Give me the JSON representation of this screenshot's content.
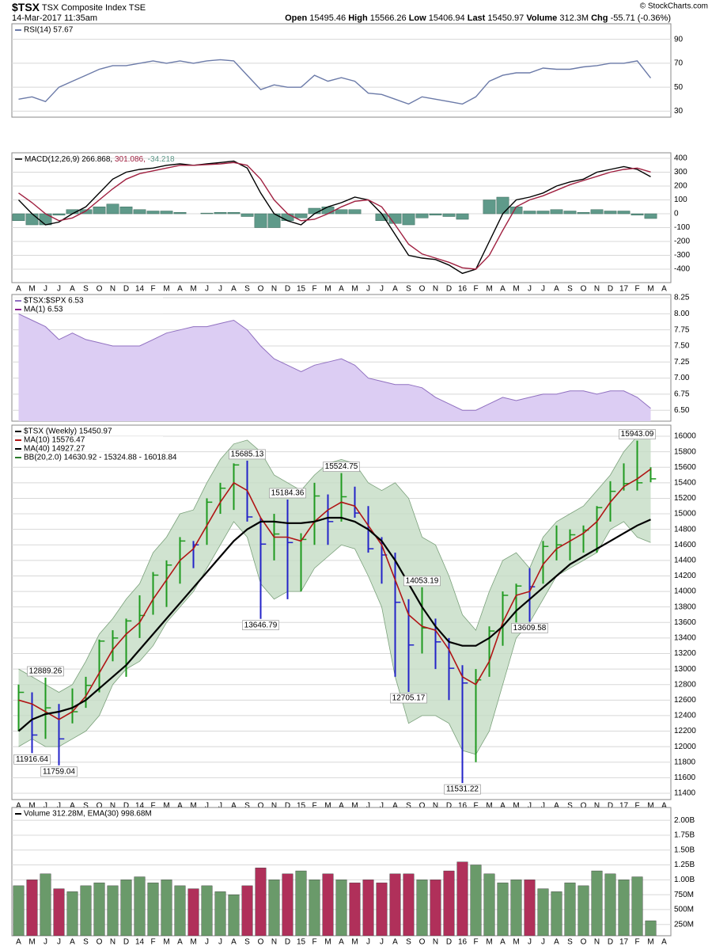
{
  "header": {
    "symbol": "$TSX",
    "name": "TSX Composite Index",
    "exchange": "TSE",
    "date": "14-Mar-2017 11:35am",
    "credit": "© StockCharts.com",
    "quote": [
      {
        "label": "Open",
        "value": 15495.46
      },
      {
        "label": "High",
        "value": 15566.26
      },
      {
        "label": "Low",
        "value": 15406.94
      },
      {
        "label": "Last",
        "value": 15450.97
      },
      {
        "label": "Volume",
        "value": "312.3M"
      },
      {
        "label": "Chg",
        "value": "-55.71 (-0.36%)"
      }
    ]
  },
  "chart_data": [
    {
      "type": "line",
      "ylim": [
        25,
        103
      ],
      "yticks": [
        30,
        50,
        70,
        90
      ],
      "grid": true,
      "series": [
        {
          "name": "RSI(14) 57.67",
          "color": "#6b7aa8",
          "values": [
            40,
            42,
            38,
            50,
            55,
            60,
            65,
            68,
            68,
            70,
            72,
            70,
            72,
            70,
            72,
            73,
            72,
            60,
            48,
            52,
            50,
            50,
            60,
            55,
            58,
            55,
            45,
            44,
            40,
            36,
            42,
            40,
            38,
            36,
            42,
            55,
            60,
            62,
            62,
            66,
            65,
            65,
            67,
            68,
            70,
            70,
            72,
            57.67,
            null
          ]
        }
      ]
    },
    {
      "type": "line",
      "legend": "inline",
      "ylim": [
        -497,
        440
      ],
      "yticks": [
        -400,
        -300,
        -200,
        -100,
        0,
        100,
        200,
        300,
        400
      ],
      "grid": true,
      "categories": [
        "A",
        "M",
        "J",
        "J",
        "A",
        "S",
        "O",
        "N",
        "D",
        "14",
        "F",
        "M",
        "A",
        "M",
        "J",
        "J",
        "A",
        "S",
        "O",
        "N",
        "D",
        "15",
        "F",
        "M",
        "A",
        "M",
        "J",
        "J",
        "A",
        "S",
        "O",
        "N",
        "D",
        "16",
        "F",
        "M",
        "A",
        "M",
        "J",
        "J",
        "A",
        "S",
        "O",
        "N",
        "D",
        "17",
        "F",
        "M",
        "A"
      ],
      "series": [
        {
          "name": "-34.218",
          "color": "#5f9a8a",
          "kind": "bar",
          "values": [
            -50,
            -80,
            -80,
            -10,
            30,
            30,
            50,
            70,
            50,
            30,
            20,
            20,
            10,
            0,
            5,
            10,
            10,
            -20,
            -100,
            -100,
            -50,
            -30,
            40,
            50,
            30,
            30,
            0,
            -50,
            -70,
            -80,
            -30,
            -10,
            -20,
            -40,
            0,
            100,
            120,
            50,
            20,
            20,
            30,
            20,
            10,
            30,
            20,
            20,
            -10,
            -34.218,
            null
          ]
        },
        {
          "name": "MACD(12,26,9) 266.868,",
          "color": "#000000",
          "values": [
            100,
            0,
            -80,
            -60,
            0,
            50,
            150,
            250,
            300,
            320,
            330,
            350,
            360,
            350,
            360,
            370,
            380,
            330,
            150,
            0,
            -50,
            -80,
            0,
            50,
            80,
            120,
            100,
            0,
            -150,
            -300,
            -320,
            -330,
            -370,
            -430,
            -400,
            -200,
            0,
            100,
            120,
            150,
            200,
            230,
            250,
            300,
            320,
            340,
            320,
            266.868,
            null
          ]
        },
        {
          "name": "301.086,",
          "color": "#a02040",
          "values": [
            150,
            80,
            0,
            -50,
            -30,
            20,
            100,
            180,
            250,
            290,
            310,
            330,
            350,
            350,
            355,
            360,
            370,
            350,
            250,
            100,
            0,
            -50,
            -40,
            0,
            50,
            90,
            100,
            50,
            -80,
            -220,
            -290,
            -320,
            -350,
            -390,
            -400,
            -300,
            -120,
            50,
            100,
            130,
            170,
            210,
            240,
            270,
            300,
            320,
            330,
            301.086,
            null
          ]
        }
      ]
    },
    {
      "type": "area",
      "ylim": [
        6.33,
        8.3
      ],
      "grid": true,
      "overlay_name": "MA(1) 6.53",
      "yticks": [
        {
          "value": 6.5,
          "label": "6.50"
        },
        6.75,
        {
          "value": 7,
          "label": "7.00"
        },
        7.25,
        {
          "value": 7.5,
          "label": "7.50"
        },
        7.75,
        {
          "value": 8,
          "label": "8.00"
        },
        8.25
      ],
      "series": [
        {
          "name": "$TSX:$SPX 6.53",
          "color": "#9070c0",
          "fill": "#dccdf3",
          "values": [
            8.0,
            7.9,
            7.8,
            7.6,
            7.7,
            7.6,
            7.55,
            7.5,
            7.5,
            7.5,
            7.6,
            7.7,
            7.75,
            7.8,
            7.8,
            7.85,
            7.9,
            7.75,
            7.5,
            7.3,
            7.2,
            7.1,
            7.2,
            7.25,
            7.3,
            7.2,
            7.0,
            6.95,
            6.9,
            6.9,
            6.85,
            6.7,
            6.6,
            6.5,
            6.5,
            6.6,
            6.7,
            6.65,
            6.7,
            6.75,
            6.75,
            6.8,
            6.8,
            6.75,
            6.8,
            6.8,
            6.7,
            6.53,
            null
          ]
        }
      ]
    },
    {
      "type": "ohlc",
      "ylim": [
        11318,
        16143
      ],
      "grid": true,
      "up_color": "#1f9a1f",
      "down_color": "#2323c8",
      "yticks": [
        11400,
        11600,
        11800,
        12000,
        12200,
        12400,
        12600,
        12800,
        13000,
        13200,
        13400,
        13600,
        13800,
        14000,
        14200,
        14400,
        14600,
        14800,
        15000,
        15200,
        15400,
        15600,
        15800,
        16000
      ],
      "categories": [
        "A",
        "M",
        "J",
        "J",
        "A",
        "S",
        "O",
        "N",
        "D",
        "14",
        "F",
        "M",
        "A",
        "M",
        "J",
        "J",
        "A",
        "S",
        "O",
        "N",
        "D",
        "15",
        "F",
        "M",
        "A",
        "M",
        "J",
        "J",
        "A",
        "S",
        "O",
        "N",
        "D",
        "16",
        "F",
        "M",
        "A",
        "M",
        "J",
        "J",
        "A",
        "S",
        "O",
        "N",
        "D",
        "17",
        "F",
        "M",
        "A"
      ],
      "series": [
        {
          "name": "$TSX (Weekly) 15450.97",
          "color": "#000000",
          "values": [
            12700,
            12150,
            12500,
            12100,
            12450,
            12790,
            13360,
            13400,
            13620,
            13690,
            14210,
            14340,
            14650,
            14600,
            15150,
            15330,
            15630,
            14960,
            14610,
            14740,
            14630,
            14670,
            15230,
            14900,
            15220,
            15010,
            14550,
            14470,
            13860,
            13310,
            13530,
            13350,
            13010,
            12820,
            12860,
            13490,
            13950,
            14070,
            14060,
            14580,
            14600,
            14730,
            14790,
            15080,
            15290,
            15390,
            15400,
            15450.97,
            null
          ],
          "high": [
            12800,
            12700,
            12889.26,
            12550,
            12750,
            12900,
            13380,
            13500,
            13650,
            13950,
            14250,
            14400,
            14700,
            14650,
            15200,
            15400,
            15650,
            15685.13,
            14950,
            15000,
            15184.36,
            14750,
            15400,
            15250,
            15524.75,
            15350,
            15100,
            14700,
            14500,
            13900,
            14053.19,
            13650,
            13400,
            13050,
            13000,
            13550,
            14000,
            14100,
            14300,
            14650,
            14850,
            14800,
            14850,
            15100,
            15420,
            15650,
            15943.09,
            15600,
            null
          ],
          "low": [
            12200,
            11916.64,
            12100,
            11759.04,
            12300,
            12500,
            12700,
            13100,
            12900,
            13400,
            13700,
            13800,
            14100,
            14300,
            14600,
            15000,
            15050,
            14900,
            13646.79,
            14400,
            13900,
            14000,
            14600,
            14600,
            14900,
            14950,
            14500,
            14100,
            12900,
            12705.17,
            13200,
            13000,
            12600,
            11531.22,
            11800,
            12900,
            13300,
            13600,
            13609.58,
            14100,
            14400,
            14400,
            14500,
            14500,
            14900,
            15300,
            15300,
            15406.94,
            null
          ]
        },
        {
          "name": "MA(10) 15576.47",
          "color": "#b01515",
          "values": [
            12600,
            12550,
            12450,
            12350,
            12450,
            12650,
            12950,
            13250,
            13450,
            13600,
            13900,
            14150,
            14400,
            14550,
            14850,
            15150,
            15400,
            15300,
            14950,
            14700,
            14700,
            14650,
            14900,
            15050,
            15150,
            15100,
            14850,
            14600,
            14150,
            13700,
            13550,
            13500,
            13250,
            12900,
            12800,
            13100,
            13600,
            13950,
            14000,
            14350,
            14550,
            14650,
            14750,
            14900,
            15150,
            15350,
            15450,
            15576.47,
            null
          ]
        },
        {
          "name": "MA(40) 14927.27",
          "color": "#000000",
          "values": [
            12200,
            12350,
            12420,
            12450,
            12500,
            12600,
            12750,
            12900,
            13050,
            13250,
            13450,
            13650,
            13850,
            14050,
            14250,
            14450,
            14650,
            14800,
            14900,
            14900,
            14880,
            14880,
            14900,
            14950,
            14950,
            14900,
            14800,
            14650,
            14400,
            14100,
            13800,
            13550,
            13350,
            13300,
            13300,
            13400,
            13550,
            13750,
            13900,
            14050,
            14200,
            14350,
            14450,
            14550,
            14650,
            14750,
            14850,
            14927.27,
            null
          ]
        }
      ],
      "band": {
        "name": "BB(20,2.0) 14630.92 - 15324.88 - 16018.84",
        "color": "#c4dcc4",
        "upper": [
          13000,
          12900,
          12800,
          12700,
          12800,
          13100,
          13450,
          13650,
          13900,
          14100,
          14500,
          14700,
          15000,
          15050,
          15400,
          15700,
          15900,
          15950,
          15800,
          15500,
          15400,
          15300,
          15500,
          15650,
          15700,
          15650,
          15400,
          15300,
          15400,
          15200,
          14700,
          14600,
          14200,
          13700,
          13500,
          14000,
          14400,
          14500,
          14300,
          14700,
          14900,
          15000,
          15100,
          15300,
          15500,
          15800,
          16000,
          16018.84,
          null
        ],
        "lower": [
          12000,
          12100,
          12000,
          12000,
          12100,
          12200,
          12400,
          12800,
          13000,
          13100,
          13300,
          13600,
          13800,
          14000,
          14300,
          14600,
          14900,
          14700,
          14100,
          13900,
          14000,
          14000,
          14300,
          14450,
          14600,
          14550,
          14200,
          13800,
          12900,
          12300,
          12400,
          12400,
          12300,
          11950,
          11900,
          12200,
          12800,
          13400,
          13600,
          13900,
          14200,
          14300,
          14400,
          14500,
          14800,
          14900,
          14700,
          14630.92,
          null
        ]
      },
      "annotations": [
        {
          "at": 2,
          "value": 12889.26
        },
        {
          "at": 1,
          "value": 11916.64
        },
        {
          "at": 3,
          "value": 11759.04
        },
        {
          "at": 17,
          "value": 15685.13
        },
        {
          "at": 18,
          "value": 13646.79
        },
        {
          "at": 20,
          "value": 15184.36
        },
        {
          "at": 24,
          "value": 15524.75
        },
        {
          "at": 29,
          "value": 12705.17
        },
        {
          "at": 30,
          "value": 14053.19
        },
        {
          "at": 33,
          "value": 11531.22
        },
        {
          "at": 38,
          "value": 13609.58
        },
        {
          "at": 46,
          "value": 15943.09
        }
      ]
    },
    {
      "type": "bar",
      "ylim": [
        60000000,
        2215000000
      ],
      "grid": true,
      "up_color": "#6a9a6a",
      "down_color": "#b0305a",
      "yticks": [
        {
          "value": 250000000,
          "label": "250M"
        },
        {
          "value": 500000000,
          "label": "500M"
        },
        {
          "value": 750000000,
          "label": "750M"
        },
        {
          "value": 1000000000,
          "label": "1.00B"
        },
        {
          "value": 1250000000,
          "label": "1.25B"
        },
        {
          "value": 1500000000,
          "label": "1.50B"
        },
        {
          "value": 1750000000,
          "label": "1.75B"
        },
        {
          "value": 2000000000,
          "label": "2.00B"
        }
      ],
      "categories": [
        "A",
        "M",
        "J",
        "J",
        "A",
        "S",
        "O",
        "N",
        "D",
        "14",
        "F",
        "M",
        "A",
        "M",
        "J",
        "J",
        "A",
        "S",
        "O",
        "N",
        "D",
        "15",
        "F",
        "M",
        "A",
        "M",
        "J",
        "J",
        "A",
        "S",
        "O",
        "N",
        "D",
        "16",
        "F",
        "M",
        "A",
        "M",
        "J",
        "J",
        "A",
        "S",
        "O",
        "N",
        "D",
        "17",
        "F",
        "M",
        "A"
      ],
      "series": [
        {
          "name": "Volume 312.28M, EMA(30) 998.68M",
          "color": "#000000",
          "values": [
            900000000,
            1000000000,
            1100000000,
            850000000,
            800000000,
            900000000,
            950000000,
            900000000,
            1000000000,
            1050000000,
            950000000,
            1000000000,
            900000000,
            850000000,
            900000000,
            800000000,
            750000000,
            900000000,
            1200000000,
            1000000000,
            1100000000,
            1150000000,
            1000000000,
            1100000000,
            1000000000,
            950000000,
            1000000000,
            950000000,
            1100000000,
            1100000000,
            1000000000,
            1000000000,
            1150000000,
            1300000000,
            1250000000,
            1100000000,
            950000000,
            1000000000,
            1000000000,
            850000000,
            800000000,
            950000000,
            900000000,
            1150000000,
            1100000000,
            1000000000,
            1050000000,
            312280000,
            null
          ]
        }
      ]
    }
  ]
}
